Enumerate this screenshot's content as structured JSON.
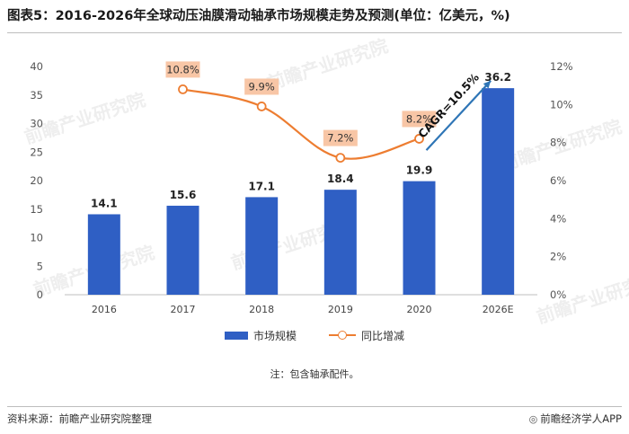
{
  "title": "图表5：2016-2026年全球动压油膜滑动轴承市场规模走势及预测(单位：亿美元，%)",
  "chart_data": {
    "type": "bar",
    "categories": [
      "2016",
      "2017",
      "2018",
      "2019",
      "2020",
      "2026E"
    ],
    "series": [
      {
        "name": "市场规模",
        "type": "bar",
        "axis": "left",
        "values": [
          14.1,
          15.6,
          17.1,
          18.4,
          19.9,
          36.2
        ],
        "labels": [
          "14.1",
          "15.6",
          "17.1",
          "18.4",
          "19.9",
          "36.2"
        ]
      },
      {
        "name": "同比增减",
        "type": "line",
        "axis": "right",
        "values": [
          null,
          10.8,
          9.9,
          7.2,
          8.2,
          null
        ],
        "labels": [
          "",
          "10.8%",
          "9.9%",
          "7.2%",
          "8.2%",
          ""
        ]
      }
    ],
    "ylim": [
      0,
      40
    ],
    "yticks": [
      "0",
      "5",
      "10",
      "15",
      "20",
      "25",
      "30",
      "35",
      "40"
    ],
    "y2lim": [
      0,
      12
    ],
    "y2ticks": [
      "0%",
      "2%",
      "4%",
      "6%",
      "8%",
      "10%",
      "12%"
    ],
    "annotation": "CAGR=10.5%",
    "legend_position": "bottom",
    "grid": false,
    "colors": {
      "bar": "#2f5fc4",
      "line": "#ed7d31",
      "label_box": "#f8c6a6",
      "arrow": "#2e75b6"
    }
  },
  "note": "注：包含轴承配件。",
  "source": "资料来源：前瞻产业研究院整理",
  "brand": "前瞻经济学人APP",
  "watermark": "前瞻产业研究院"
}
